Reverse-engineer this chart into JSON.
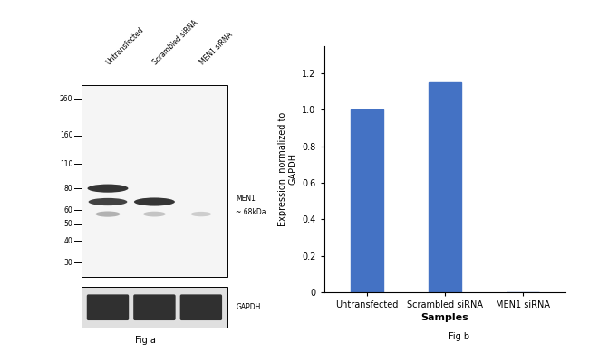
{
  "fig_width": 6.5,
  "fig_height": 3.89,
  "dpi": 100,
  "bar_categories": [
    "Untransfected",
    "Scrambled siRNA",
    "MEN1 siRNA"
  ],
  "bar_values": [
    1.0,
    1.15,
    0.0
  ],
  "bar_color": "#4472C4",
  "ylabel_line1": "Expression  normalized to",
  "ylabel_line2": "GAPDH",
  "xlabel": "Samples",
  "ylim": [
    0,
    1.35
  ],
  "yticks": [
    0,
    0.2,
    0.4,
    0.6,
    0.8,
    1.0,
    1.2
  ],
  "fig_b_label": "Fig b",
  "fig_a_label": "Fig a",
  "wb_ladder_labels": [
    "260",
    "160",
    "110",
    "80",
    "60",
    "50",
    "40",
    "30"
  ],
  "wb_ladder_values": [
    260,
    160,
    110,
    80,
    60,
    50,
    40,
    30
  ],
  "wb_col_labels": [
    "Untransfected",
    "Scrambled siRNA",
    "MEN1 siRNA"
  ],
  "background_color": "#ffffff",
  "blot_bg": "#f5f5f5",
  "gapdh_bg": "#e0e0e0"
}
